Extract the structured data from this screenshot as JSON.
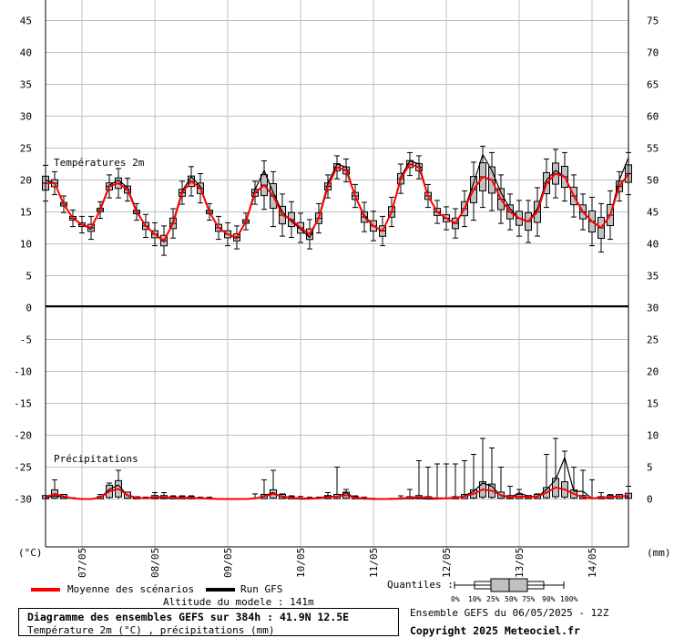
{
  "chart_data": [
    {
      "type": "line",
      "title": "Températures 2m",
      "ylabel_left": "(°C)",
      "ylim_left": [
        -30,
        45
      ],
      "left_ticks": [
        "45",
        "40",
        "35",
        "30",
        "25",
        "20",
        "15",
        "10",
        "5",
        "0",
        "-5",
        "-10",
        "-15",
        "-20",
        "-25",
        "-30"
      ],
      "x_tick_labels": [
        "07/05",
        "08/05",
        "09/05",
        "10/05",
        "11/05",
        "12/05",
        "13/05",
        "14/05"
      ],
      "x_step_hours": 6,
      "series": [
        {
          "name": "Moyenne des scénarios",
          "color": "#ff0000",
          "values": [
            19.5,
            19.5,
            16.2,
            14.0,
            13.0,
            12.5,
            15.3,
            19.0,
            19.5,
            18.5,
            15.0,
            12.8,
            11.5,
            10.5,
            13.2,
            18.0,
            19.8,
            18.7,
            15.0,
            12.5,
            11.5,
            11.0,
            13.5,
            18.0,
            19.2,
            17.5,
            14.5,
            13.8,
            12.5,
            11.5,
            14.0,
            19.0,
            22.0,
            21.5,
            17.5,
            14.2,
            12.8,
            12.0,
            15.0,
            20.2,
            22.5,
            22.0,
            17.5,
            15.0,
            14.0,
            13.2,
            15.5,
            18.5,
            20.5,
            20.0,
            17.0,
            15.0,
            14.0,
            13.5,
            15.0,
            19.5,
            21.0,
            20.5,
            17.5,
            15.0,
            13.5,
            12.5,
            14.5,
            19.0,
            21.0
          ]
        },
        {
          "name": "Run GFS",
          "color": "#000000",
          "values": [
            20.0,
            19.5,
            16.3,
            14.0,
            13.0,
            12.3,
            15.5,
            19.2,
            20.0,
            18.8,
            15.2,
            12.8,
            11.5,
            10.3,
            13.5,
            18.3,
            20.5,
            19.0,
            15.0,
            12.5,
            11.5,
            10.8,
            13.5,
            18.5,
            21.5,
            18.0,
            15.0,
            13.5,
            12.3,
            11.0,
            14.2,
            19.5,
            22.5,
            22.0,
            17.5,
            14.5,
            12.8,
            12.0,
            15.0,
            20.5,
            23.0,
            22.5,
            17.5,
            15.0,
            14.0,
            13.3,
            15.5,
            19.5,
            24.0,
            21.5,
            18.0,
            15.5,
            14.0,
            13.5,
            15.5,
            20.0,
            21.5,
            20.5,
            17.5,
            15.0,
            13.5,
            12.5,
            14.5,
            20.0,
            23.5
          ]
        }
      ],
      "spread_ranges": [
        [
          2,
          2
        ],
        [
          1,
          1
        ],
        [
          0.5,
          0.5
        ],
        [
          0.5,
          0.5
        ],
        [
          0.5,
          0.5
        ],
        [
          1,
          1
        ],
        [
          0.5,
          0.5
        ],
        [
          1,
          1
        ],
        [
          1.5,
          1.5
        ],
        [
          1,
          1
        ],
        [
          0.5,
          0.5
        ],
        [
          1,
          1
        ],
        [
          1,
          1
        ],
        [
          1.5,
          1.5
        ],
        [
          1.5,
          1.5
        ],
        [
          1,
          1
        ],
        [
          1.5,
          1.5
        ],
        [
          1.5,
          1.5
        ],
        [
          0.5,
          0.5
        ],
        [
          1,
          1
        ],
        [
          1,
          1
        ],
        [
          1,
          1
        ],
        [
          0.5,
          0.5
        ],
        [
          1,
          1
        ],
        [
          3,
          3
        ],
        [
          4,
          3
        ],
        [
          2.5,
          2.5
        ],
        [
          2,
          2
        ],
        [
          1.5,
          1.5
        ],
        [
          1.5,
          1.5
        ],
        [
          1.5,
          1.5
        ],
        [
          1,
          1
        ],
        [
          1,
          1
        ],
        [
          1,
          1
        ],
        [
          1,
          1
        ],
        [
          1.5,
          1.5
        ],
        [
          1.5,
          1.5
        ],
        [
          1.5,
          1.5
        ],
        [
          1.5,
          1.5
        ],
        [
          1.5,
          1.5
        ],
        [
          1,
          1
        ],
        [
          1,
          1
        ],
        [
          1,
          1
        ],
        [
          1,
          1
        ],
        [
          1,
          1
        ],
        [
          1.5,
          1.5
        ],
        [
          2,
          2
        ],
        [
          4,
          3.5
        ],
        [
          4,
          4
        ],
        [
          4,
          3.5
        ],
        [
          3,
          3
        ],
        [
          2,
          2
        ],
        [
          2,
          2
        ],
        [
          2.5,
          2.5
        ],
        [
          3,
          3
        ],
        [
          3,
          3
        ],
        [
          3,
          3
        ],
        [
          3,
          3
        ],
        [
          2.5,
          2.5
        ],
        [
          2,
          2
        ],
        [
          3,
          3
        ],
        [
          3,
          3
        ],
        [
          3,
          3
        ],
        [
          1.5,
          1.5
        ],
        [
          2.5,
          2.5
        ]
      ]
    },
    {
      "type": "line",
      "title": "Précipitations",
      "ylabel_right": "(mm)",
      "ylim_right": [
        0,
        75
      ],
      "right_ticks": [
        "75",
        "70",
        "65",
        "60",
        "55",
        "50",
        "45",
        "40",
        "35",
        "30",
        "25",
        "20",
        "15",
        "10",
        "5",
        "0"
      ],
      "series": [
        {
          "name": "Moyenne des scénarios",
          "color": "#ff0000",
          "values": [
            0.3,
            0.8,
            0.4,
            0.1,
            0.0,
            0.0,
            0.2,
            1.2,
            1.6,
            0.6,
            0.2,
            0.1,
            0.3,
            0.3,
            0.2,
            0.2,
            0.2,
            0.1,
            0.1,
            0.0,
            0.0,
            0.0,
            0.0,
            0.1,
            0.4,
            0.8,
            0.4,
            0.2,
            0.1,
            0.1,
            0.1,
            0.3,
            0.4,
            0.6,
            0.2,
            0.1,
            0.0,
            0.0,
            0.0,
            0.1,
            0.2,
            0.3,
            0.2,
            0.1,
            0.1,
            0.2,
            0.4,
            0.8,
            1.5,
            1.3,
            0.6,
            0.3,
            0.4,
            0.3,
            0.4,
            1.0,
            1.8,
            1.5,
            0.8,
            0.3,
            0.1,
            0.2,
            0.3,
            0.4,
            0.5
          ]
        },
        {
          "name": "Run GFS",
          "color": "#000000",
          "values": [
            0.2,
            0.5,
            0.3,
            0.1,
            0.0,
            0.0,
            0.2,
            1.5,
            2.2,
            0.5,
            0.1,
            0.1,
            0.2,
            0.2,
            0.1,
            0.1,
            0.1,
            0.1,
            0.0,
            0.0,
            0.0,
            0.0,
            0.0,
            0.1,
            0.5,
            1.0,
            0.3,
            0.1,
            0.0,
            0.0,
            0.1,
            0.5,
            0.3,
            1.0,
            0.1,
            0.0,
            0.0,
            0.0,
            0.0,
            0.0,
            0.1,
            0.1,
            0.0,
            0.0,
            0.1,
            0.1,
            0.5,
            1.2,
            2.5,
            2.0,
            0.5,
            0.2,
            1.0,
            0.4,
            0.3,
            1.5,
            3.0,
            6.5,
            1.2,
            1.2,
            0.1,
            0.1,
            0.3,
            0.5,
            0.3
          ]
        }
      ],
      "max_whiskers": [
        0.3,
        3.0,
        0.6,
        0.2,
        0.0,
        0.0,
        0.7,
        2.5,
        4.5,
        1.0,
        0.3,
        0.3,
        1.0,
        1.0,
        0.5,
        0.5,
        0.5,
        0.3,
        0.3,
        0.0,
        0.0,
        0.0,
        0.0,
        0.8,
        3.0,
        4.5,
        0.8,
        0.5,
        0.4,
        0.3,
        0.3,
        1.0,
        5.0,
        1.5,
        0.5,
        0.3,
        0.1,
        0.0,
        0.1,
        0.5,
        1.5,
        6.0,
        5.0,
        5.5,
        5.5,
        5.5,
        6.0,
        7.0,
        9.5,
        8.0,
        5.0,
        2.0,
        1.5,
        0.5,
        0.8,
        7.0,
        9.5,
        7.5,
        5.0,
        4.5,
        3.0,
        1.0,
        0.7,
        0.5,
        2.0
      ]
    }
  ],
  "legend": {
    "mean_label": "Moyenne des scénarios",
    "run_label": "Run GFS",
    "quantiles_label": "Quantiles :",
    "quantile_ticks": [
      "0%",
      "10%",
      "25%",
      "50%",
      "75%",
      "90%",
      "100%"
    ]
  },
  "footer": {
    "altitude": "Altitude du modele : 141m",
    "title_line": "Diagramme des ensembles GEFS sur 384h : 41.9N 12.5E",
    "subtitle_line": "Température 2m (°C) , précipitations (mm)",
    "ensemble_date": "Ensemble GEFS du 06/05/2025 - 12Z",
    "copyright": "Copyright 2025 Meteociel.fr"
  },
  "colors": {
    "mean": "#ff0000",
    "run": "#000000",
    "grid": "#c0c0c0",
    "box_fill": "#c0c0c0"
  }
}
